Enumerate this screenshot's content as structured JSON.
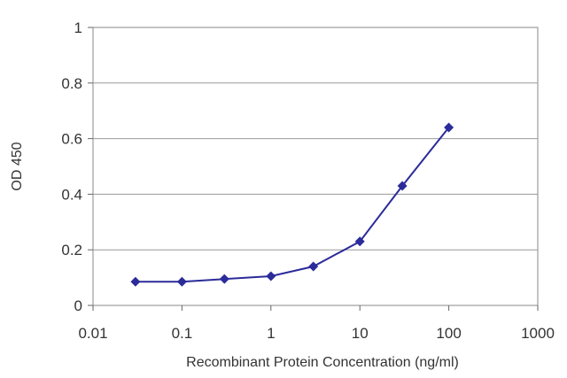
{
  "chart_data": {
    "type": "line",
    "title": "",
    "xlabel": "Recombinant Protein Concentration (ng/ml)",
    "ylabel": "OD 450",
    "x_scale": "log",
    "xlim": [
      0.01,
      1000
    ],
    "ylim": [
      0,
      1
    ],
    "x_ticks": [
      "0.01",
      "0.1",
      "1",
      "10",
      "100",
      "1000"
    ],
    "y_ticks": [
      "0",
      "0.2",
      "0.4",
      "0.6",
      "0.8",
      "1"
    ],
    "grid": "horizontal",
    "legend": "none",
    "series": [
      {
        "color": "#2b2b9a",
        "marker": "diamond",
        "x": [
          0.03,
          0.1,
          0.3,
          1,
          3,
          10,
          30,
          100
        ],
        "y": [
          0.085,
          0.085,
          0.095,
          0.105,
          0.14,
          0.23,
          0.43,
          0.64
        ]
      }
    ]
  }
}
